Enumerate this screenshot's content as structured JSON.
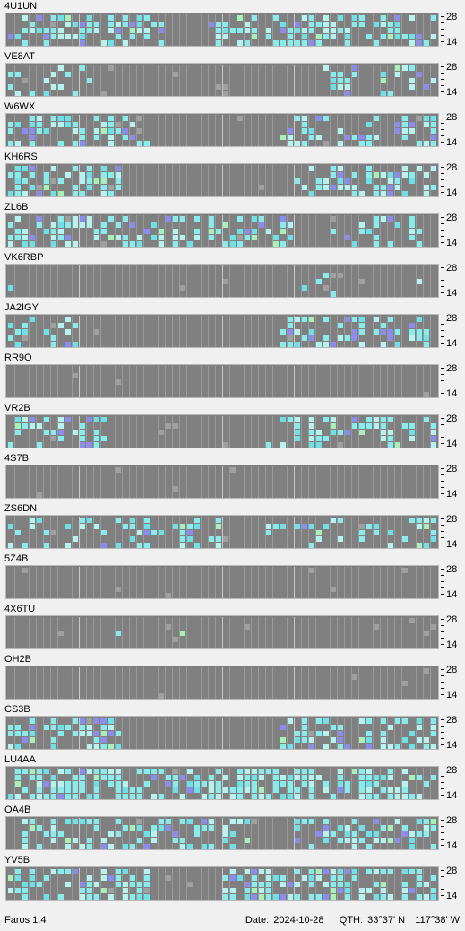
{
  "colors": {
    "background": "#f0f0f0",
    "cell_off": "#808080",
    "cyan": "#88ecec",
    "light_cyan": "#b6f2ee",
    "aqua": "#6fe0e6",
    "blue": "#8c8cf0",
    "green": "#a8f0b8",
    "gray_light": "#a0a0a0"
  },
  "axis": {
    "top_label": "28",
    "bottom_label": "14"
  },
  "stations": [
    {
      "name": "4U1UN"
    },
    {
      "name": "VE8AT"
    },
    {
      "name": "W6WX"
    },
    {
      "name": "KH6RS"
    },
    {
      "name": "ZL6B"
    },
    {
      "name": "VK6RBP"
    },
    {
      "name": "JA2IGY"
    },
    {
      "name": "RR9O"
    },
    {
      "name": "VR2B"
    },
    {
      "name": "4S7B"
    },
    {
      "name": "ZS6DN"
    },
    {
      "name": "5Z4B"
    },
    {
      "name": "4X6TU"
    },
    {
      "name": "OH2B"
    },
    {
      "name": "CS3B"
    },
    {
      "name": "LU4AA"
    },
    {
      "name": "OA4B"
    },
    {
      "name": "YV5B"
    }
  ],
  "status": {
    "app_version": "Faros 1.4",
    "date_label": "Date:",
    "date_value": "2024-10-28",
    "qth_label": "QTH:",
    "qth_lat": "33°37' N",
    "qth_lon": "117°38' W"
  }
}
